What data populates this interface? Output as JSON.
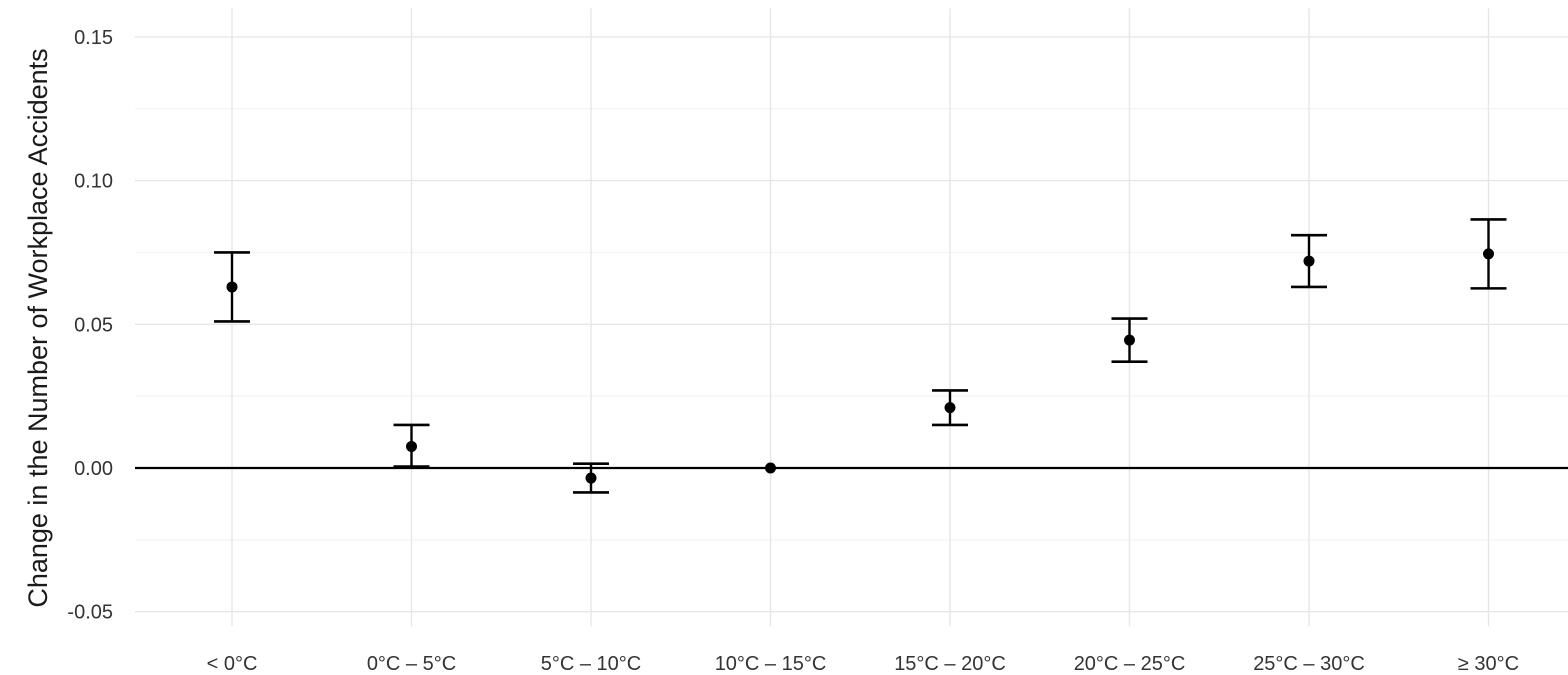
{
  "chart_data": {
    "type": "scatter",
    "title": "",
    "xlabel": "",
    "ylabel": "Change in the Number of Workplace Accidents",
    "categories": [
      "< 0°C",
      "0°C – 5°C",
      "5°C – 10°C",
      "10°C – 15°C",
      "15°C – 20°C",
      "20°C – 25°C",
      "25°C – 30°C",
      "≥ 30°C"
    ],
    "estimates": [
      0.063,
      0.0075,
      -0.0035,
      0.0,
      0.021,
      0.0445,
      0.072,
      0.0745
    ],
    "ci_lower": [
      0.051,
      0.0005,
      -0.0085,
      0.0,
      0.015,
      0.037,
      0.063,
      0.0625
    ],
    "ci_upper": [
      0.075,
      0.015,
      0.0015,
      0.0,
      0.027,
      0.052,
      0.081,
      0.0865
    ],
    "ylim": [
      -0.055,
      0.16
    ],
    "yticks": [
      -0.05,
      0.0,
      0.05,
      0.1,
      0.15
    ],
    "ytick_labels": [
      "-0.05",
      "0.00",
      "0.05",
      "0.10",
      "0.15"
    ],
    "reference_line": 0.0,
    "grid": true,
    "legend": "none"
  },
  "colors": {
    "background": "#ffffff",
    "grid_major": "#e6e6e6",
    "grid_minor": "#f3f3f3",
    "marks": "#000000",
    "text": "#333333"
  }
}
